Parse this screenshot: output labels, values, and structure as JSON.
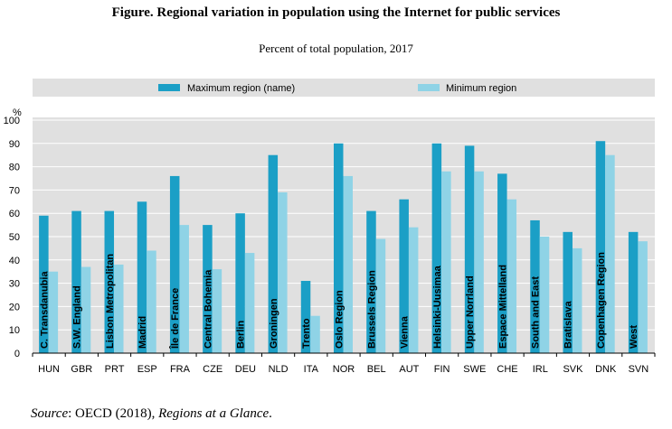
{
  "figure": {
    "title": "Figure. Regional variation in population using the Internet for public services",
    "subtitle": "Percent of total population, 2017",
    "source_label": "Source",
    "source_text": ": OECD (2018), ",
    "source_italic": "Regions at a Glance",
    "source_end": "."
  },
  "chart_data": {
    "type": "bar",
    "ylabel": "%",
    "ylim": [
      0,
      100
    ],
    "yticks": [
      0,
      10,
      20,
      30,
      40,
      50,
      60,
      70,
      80,
      90,
      100
    ],
    "legend_position": "top",
    "categories": [
      "HUN",
      "GBR",
      "PRT",
      "ESP",
      "FRA",
      "CZE",
      "DEU",
      "NLD",
      "ITA",
      "NOR",
      "BEL",
      "AUT",
      "FIN",
      "SWE",
      "CHE",
      "IRL",
      "SVK",
      "DNK",
      "SVN"
    ],
    "series": [
      {
        "name": "Maximum region (name)",
        "color": "#1b9fc6",
        "values": [
          59,
          61,
          61,
          65,
          76,
          55,
          60,
          85,
          31,
          90,
          61,
          66,
          90,
          89,
          77,
          57,
          52,
          91,
          52
        ],
        "region_names": [
          "C. Transdanubia",
          "S.W. England",
          "Lisbon Metropolitan",
          "Madrid",
          "Île de France",
          "Central Bohemia",
          "Berlin",
          "Groningen",
          "Trento",
          "Oslo Region",
          "Brussels Region",
          "Vienna",
          "Helsinki-Uusimaa",
          "Upper Norrland",
          "Espace Mittelland",
          "South and East",
          "Bratislava",
          "Copenhagen Region",
          "West"
        ]
      },
      {
        "name": "Minimum region",
        "color": "#8fd3e6",
        "values": [
          35,
          37,
          38,
          44,
          55,
          36,
          43,
          69,
          16,
          76,
          49,
          54,
          78,
          78,
          66,
          50,
          45,
          85,
          48
        ]
      }
    ]
  }
}
